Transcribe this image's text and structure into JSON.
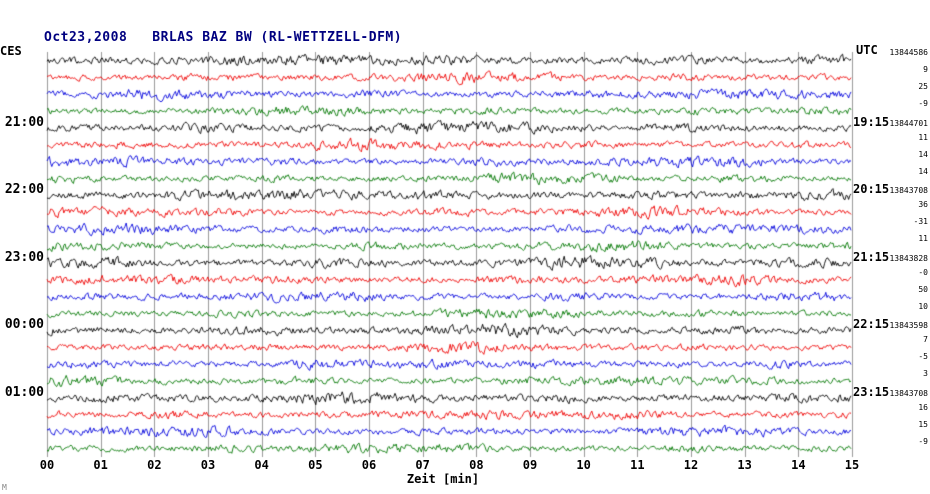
{
  "title": "Oct23,2008   BRLAS BAZ BW (RL-WETTZELL-DFM)",
  "left_header": "CES",
  "right_header": "UTC",
  "xlabel": "Zeit [min]",
  "watermark": "M",
  "chart_data": {
    "type": "line",
    "subtype": "seismogram-helicorder",
    "title": "Oct23,2008   BRLAS BAZ BW (RL-WETTZELL-DFM)",
    "xlabel": "Zeit [min]",
    "xlim": [
      0,
      15
    ],
    "grid": true,
    "x_ticks": [
      "00",
      "01",
      "02",
      "03",
      "04",
      "05",
      "06",
      "07",
      "08",
      "09",
      "10",
      "11",
      "12",
      "13",
      "14",
      "15"
    ],
    "trace_colors": {
      "black": "#000000",
      "red": "#ee0000",
      "blue": "#0000dd",
      "green": "#007700"
    },
    "grid_color": "#9a9a9a",
    "title_color": "#000080",
    "rows": [
      {
        "color": "black",
        "left": "",
        "right_time": "",
        "right_value": "13844586"
      },
      {
        "color": "red",
        "left": "",
        "right_time": "",
        "right_value": "9"
      },
      {
        "color": "blue",
        "left": "",
        "right_time": "",
        "right_value": "25"
      },
      {
        "color": "green",
        "left": "",
        "right_time": "",
        "right_value": "-9"
      },
      {
        "color": "black",
        "left": "21:00",
        "right_time": "19:15",
        "right_value": "13844701"
      },
      {
        "color": "red",
        "left": "",
        "right_time": "",
        "right_value": "11"
      },
      {
        "color": "blue",
        "left": "",
        "right_time": "",
        "right_value": "14"
      },
      {
        "color": "green",
        "left": "",
        "right_time": "",
        "right_value": "14"
      },
      {
        "color": "black",
        "left": "22:00",
        "right_time": "20:15",
        "right_value": "13843708"
      },
      {
        "color": "red",
        "left": "",
        "right_time": "",
        "right_value": "36"
      },
      {
        "color": "blue",
        "left": "",
        "right_time": "",
        "right_value": "-31"
      },
      {
        "color": "green",
        "left": "",
        "right_time": "",
        "right_value": "11"
      },
      {
        "color": "black",
        "left": "23:00",
        "right_time": "21:15",
        "right_value": "13843828"
      },
      {
        "color": "red",
        "left": "",
        "right_time": "",
        "right_value": "-0"
      },
      {
        "color": "blue",
        "left": "",
        "right_time": "",
        "right_value": "50"
      },
      {
        "color": "green",
        "left": "",
        "right_time": "",
        "right_value": "10"
      },
      {
        "color": "black",
        "left": "00:00",
        "right_time": "22:15",
        "right_value": "13843598"
      },
      {
        "color": "red",
        "left": "",
        "right_time": "",
        "right_value": "7"
      },
      {
        "color": "blue",
        "left": "",
        "right_time": "",
        "right_value": "-5"
      },
      {
        "color": "green",
        "left": "",
        "right_time": "",
        "right_value": "3"
      },
      {
        "color": "black",
        "left": "01:00",
        "right_time": "23:15",
        "right_value": "13843708"
      },
      {
        "color": "red",
        "left": "",
        "right_time": "",
        "right_value": "16"
      },
      {
        "color": "blue",
        "left": "",
        "right_time": "",
        "right_value": "15"
      },
      {
        "color": "green",
        "left": "",
        "right_time": "",
        "right_value": "-9"
      }
    ]
  }
}
